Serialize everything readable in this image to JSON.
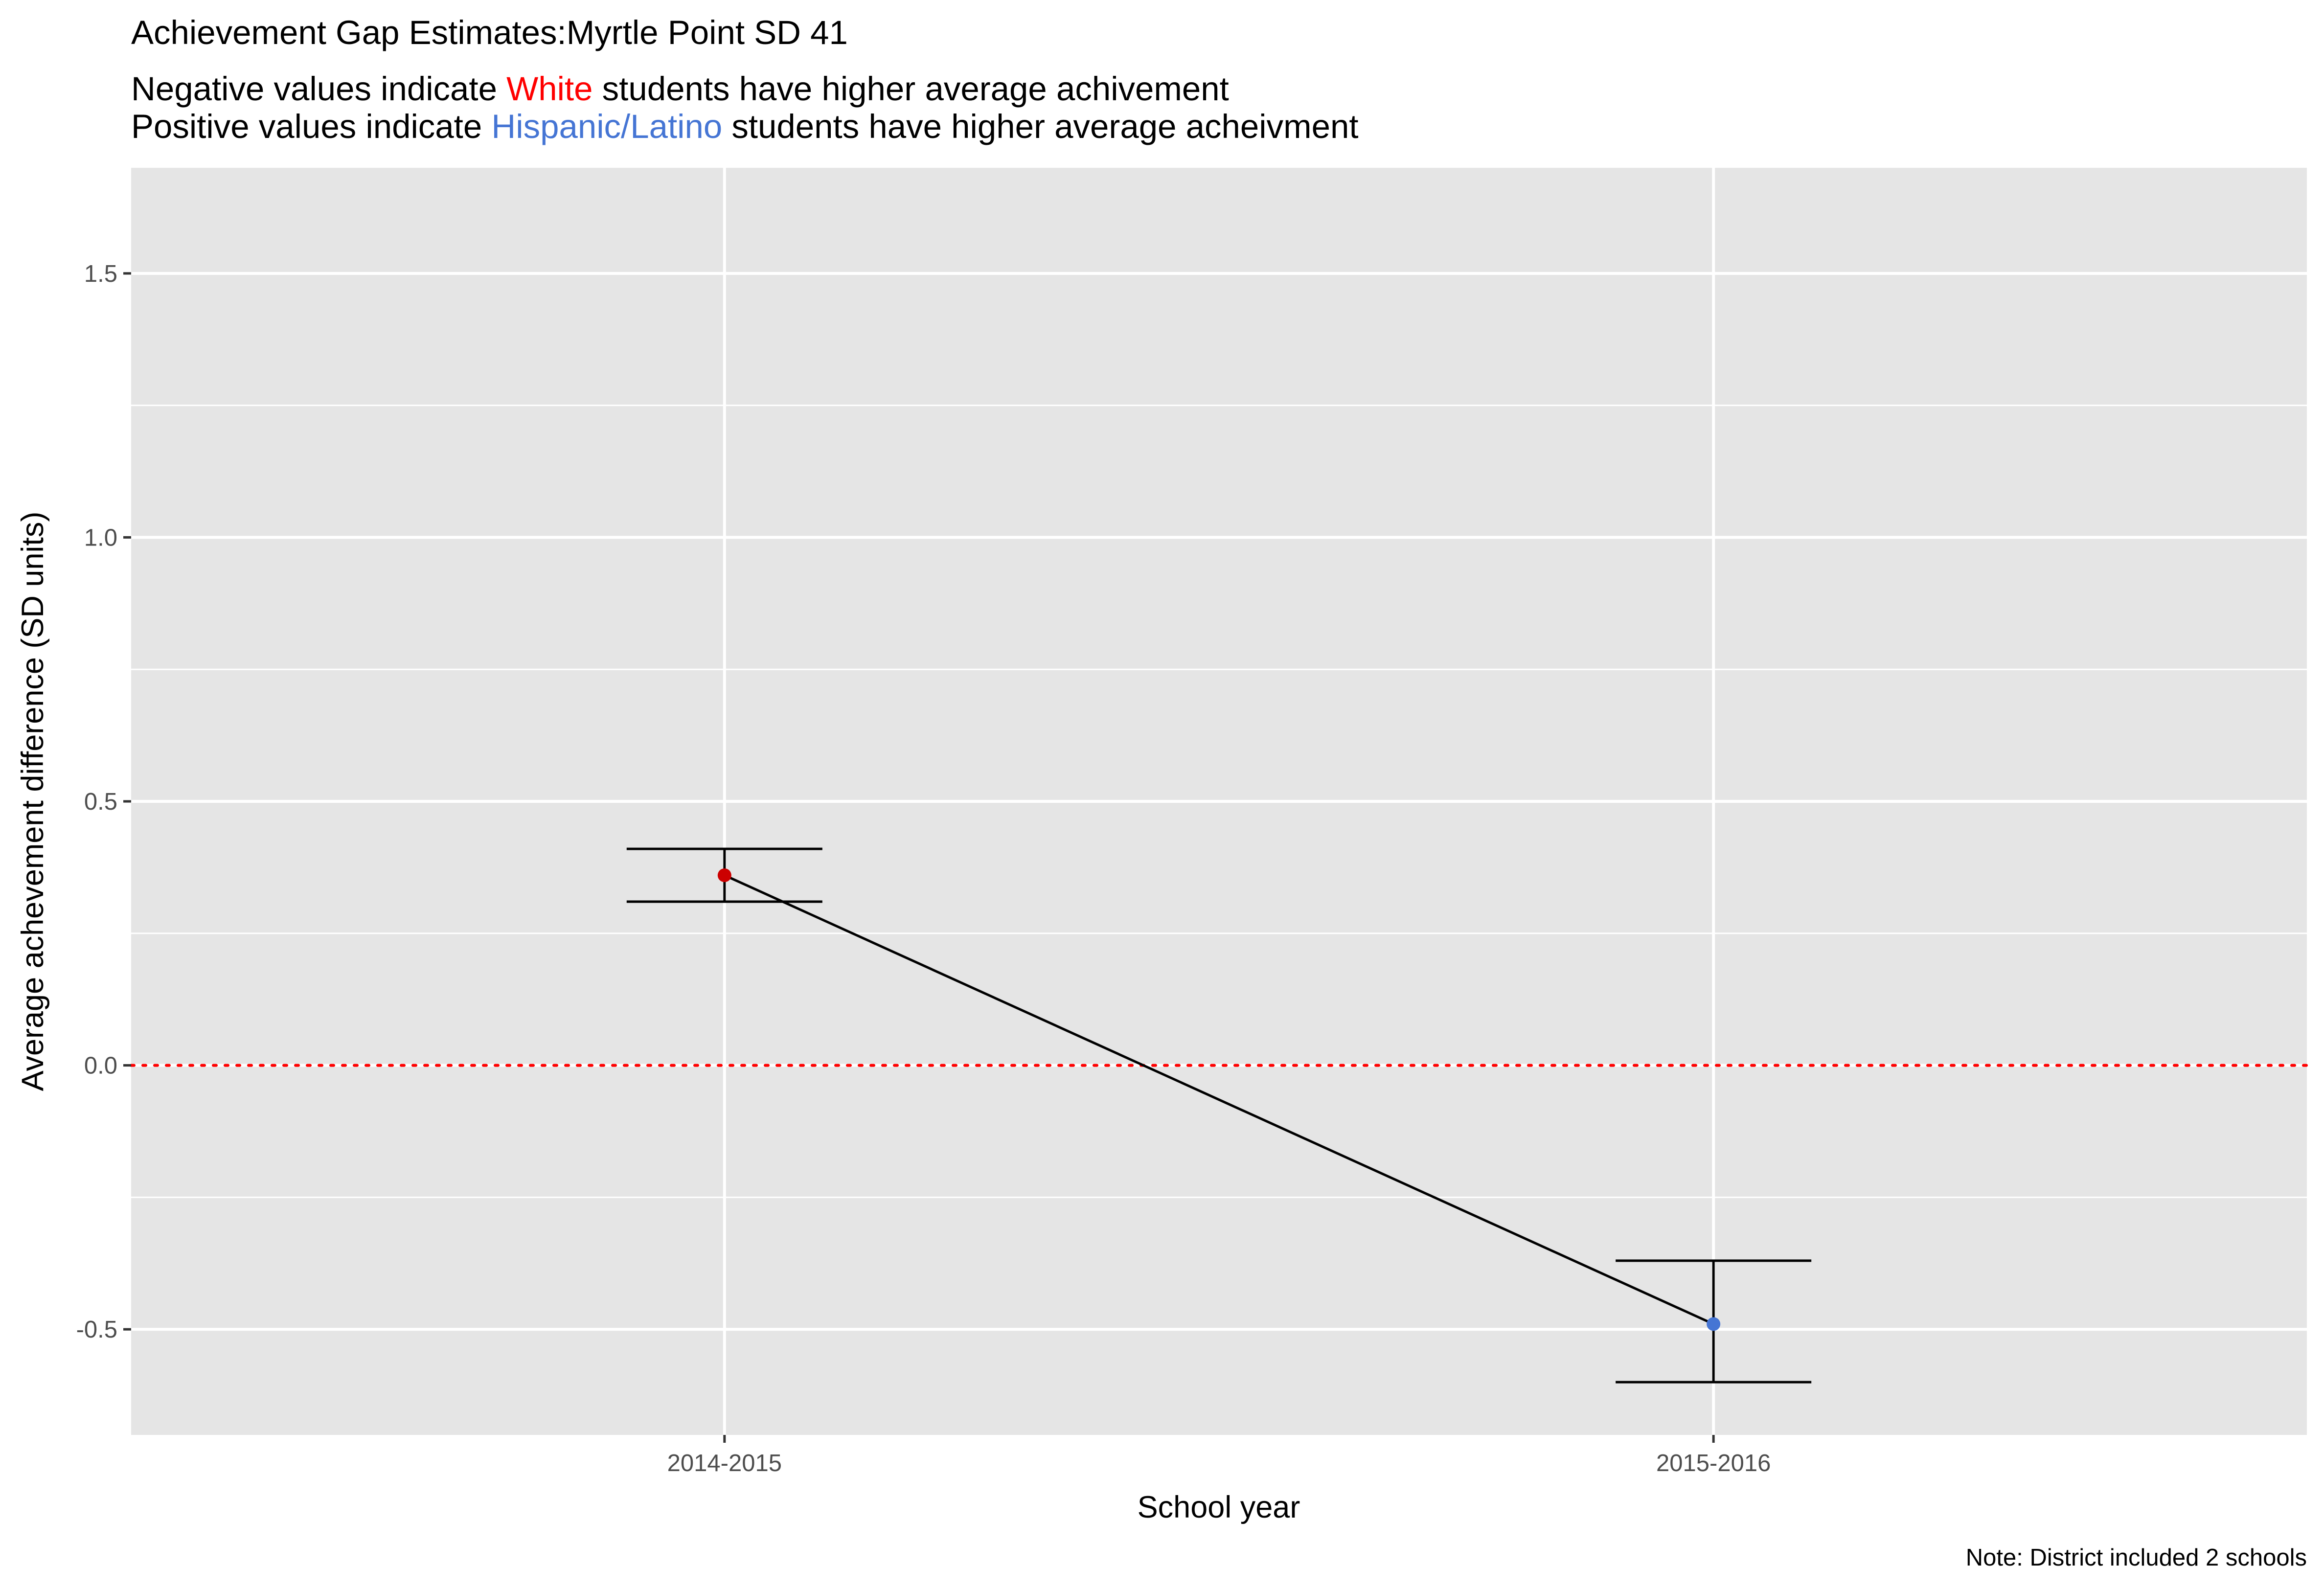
{
  "chart_data": {
    "type": "line",
    "title": "Achievement Gap Estimates:Myrtle Point SD 41",
    "subtitle": {
      "line1": {
        "prefix": "Negative values indicate ",
        "highlight": "White",
        "suffix": " students have higher average achivement"
      },
      "line2": {
        "prefix": "Positive values indicate ",
        "highlight": "Hispanic/Latino",
        "suffix": " students have higher average acheivment"
      }
    },
    "xlabel": "School year",
    "ylabel": "Average achevement difference (SD units)",
    "caption": "Note: District included 2 schools",
    "categories": [
      "2014-2015",
      "2015-2016"
    ],
    "ylim": [
      -0.7,
      1.7
    ],
    "yticks": [
      -0.5,
      0.0,
      0.5,
      1.0,
      1.5
    ],
    "ytick_labels": [
      "-0.5",
      "0.0",
      "0.5",
      "1.0",
      "1.5"
    ],
    "points": [
      {
        "x": "2014-2015",
        "y": 0.36,
        "lower": 0.31,
        "upper": 0.41,
        "color": "#cc0000"
      },
      {
        "x": "2015-2016",
        "y": -0.49,
        "lower": -0.6,
        "upper": -0.37,
        "color": "#4575d4"
      }
    ],
    "reference_line": {
      "y": 0.0,
      "color": "#ff0000",
      "style": "dotted"
    },
    "grid": true,
    "colors": {
      "panel": "#e5e5e5",
      "grid": "#ffffff",
      "white_group": "#ff0000",
      "hispanic_group": "#4575d4",
      "line": "#000000"
    }
  }
}
